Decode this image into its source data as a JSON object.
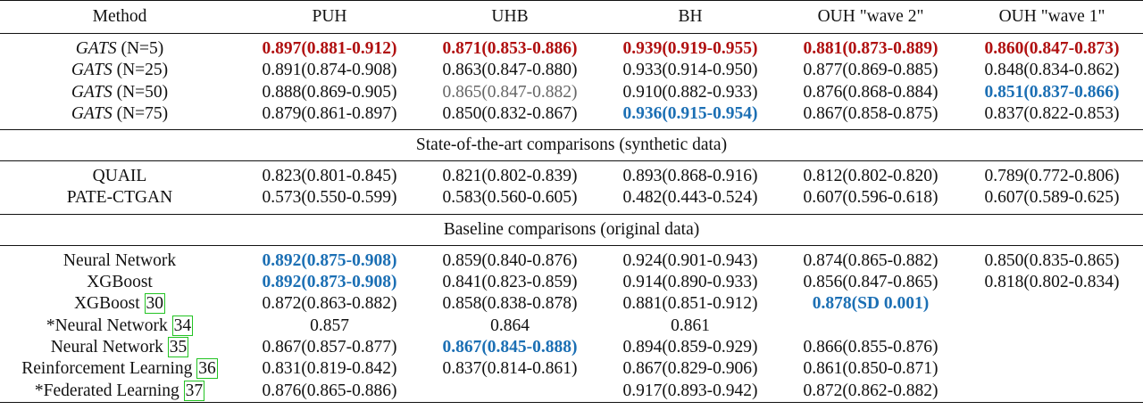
{
  "header": [
    "Method",
    "PUH",
    "UHB",
    "BH",
    "OUH \"wave 2\"",
    "OUH \"wave 1\""
  ],
  "gats_rows": [
    {
      "method": "GATS",
      "n": " (N=5)",
      "cells": [
        {
          "v": "0.897(0.881-0.912)",
          "s": "red"
        },
        {
          "v": "0.871(0.853-0.886)",
          "s": "red"
        },
        {
          "v": "0.939(0.919-0.955)",
          "s": "red"
        },
        {
          "v": "0.881(0.873-0.889)",
          "s": "red"
        },
        {
          "v": "0.860(0.847-0.873)",
          "s": "red"
        }
      ]
    },
    {
      "method": "GATS",
      "n": " (N=25)",
      "cells": [
        {
          "v": "0.891(0.874-0.908)",
          "s": ""
        },
        {
          "v": "0.863(0.847-0.880)",
          "s": ""
        },
        {
          "v": "0.933(0.914-0.950)",
          "s": ""
        },
        {
          "v": "0.877(0.869-0.885)",
          "s": ""
        },
        {
          "v": "0.848(0.834-0.862)",
          "s": ""
        }
      ]
    },
    {
      "method": "GATS",
      "n": " (N=50)",
      "cells": [
        {
          "v": "0.888(0.869-0.905)",
          "s": ""
        },
        {
          "v": "0.865(0.847-0.882)",
          "s": "grey"
        },
        {
          "v": "0.910(0.882-0.933)",
          "s": ""
        },
        {
          "v": "0.876(0.868-0.884)",
          "s": ""
        },
        {
          "v": "0.851(0.837-0.866)",
          "s": "blue"
        }
      ]
    },
    {
      "method": "GATS",
      "n": " (N=75)",
      "cells": [
        {
          "v": "0.879(0.861-0.897)",
          "s": ""
        },
        {
          "v": "0.850(0.832-0.867)",
          "s": ""
        },
        {
          "v": "0.936(0.915-0.954)",
          "s": "blue"
        },
        {
          "v": "0.867(0.858-0.875)",
          "s": ""
        },
        {
          "v": "0.837(0.822-0.853)",
          "s": ""
        }
      ]
    }
  ],
  "section1_title": "State-of-the-art comparisons (synthetic data)",
  "sota_rows": [
    {
      "method": "QUAIL",
      "cells": [
        {
          "v": "0.823(0.801-0.845)",
          "s": ""
        },
        {
          "v": "0.821(0.802-0.839)",
          "s": ""
        },
        {
          "v": "0.893(0.868-0.916)",
          "s": ""
        },
        {
          "v": "0.812(0.802-0.820)",
          "s": ""
        },
        {
          "v": "0.789(0.772-0.806)",
          "s": ""
        }
      ]
    },
    {
      "method": "PATE-CTGAN",
      "cells": [
        {
          "v": "0.573(0.550-0.599)",
          "s": ""
        },
        {
          "v": "0.583(0.560-0.605)",
          "s": ""
        },
        {
          "v": "0.482(0.443-0.524)",
          "s": ""
        },
        {
          "v": "0.607(0.596-0.618)",
          "s": ""
        },
        {
          "v": "0.607(0.589-0.625)",
          "s": ""
        }
      ]
    }
  ],
  "section2_title": "Baseline comparisons (original data)",
  "baseline_rows": [
    {
      "method": "Neural Network",
      "ref": "",
      "cells": [
        {
          "v": "0.892(0.875-0.908)",
          "s": "blue"
        },
        {
          "v": "0.859(0.840-0.876)",
          "s": ""
        },
        {
          "v": "0.924(0.901-0.943)",
          "s": ""
        },
        {
          "v": "0.874(0.865-0.882)",
          "s": ""
        },
        {
          "v": "0.850(0.835-0.865)",
          "s": ""
        }
      ]
    },
    {
      "method": "XGBoost",
      "ref": "",
      "cells": [
        {
          "v": "0.892(0.873-0.908)",
          "s": "blue"
        },
        {
          "v": "0.841(0.823-0.859)",
          "s": ""
        },
        {
          "v": "0.914(0.890-0.933)",
          "s": ""
        },
        {
          "v": "0.856(0.847-0.865)",
          "s": ""
        },
        {
          "v": "0.818(0.802-0.834)",
          "s": ""
        }
      ]
    },
    {
      "method": "XGBoost ",
      "ref": "30",
      "cells": [
        {
          "v": "0.872(0.863-0.882)",
          "s": ""
        },
        {
          "v": "0.858(0.838-0.878)",
          "s": ""
        },
        {
          "v": "0.881(0.851-0.912)",
          "s": ""
        },
        {
          "v": "0.878(SD 0.001)",
          "s": "blue"
        },
        {
          "v": "",
          "s": ""
        }
      ]
    },
    {
      "method": "*Neural Network ",
      "ref": "34",
      "cells": [
        {
          "v": "0.857",
          "s": ""
        },
        {
          "v": "0.864",
          "s": ""
        },
        {
          "v": "0.861",
          "s": ""
        },
        {
          "v": "",
          "s": ""
        },
        {
          "v": "",
          "s": ""
        }
      ]
    },
    {
      "method": "Neural Network ",
      "ref": "35",
      "cells": [
        {
          "v": "0.867(0.857-0.877)",
          "s": ""
        },
        {
          "v": "0.867(0.845-0.888)",
          "s": "blue"
        },
        {
          "v": "0.894(0.859-0.929)",
          "s": ""
        },
        {
          "v": "0.866(0.855-0.876)",
          "s": ""
        },
        {
          "v": "",
          "s": ""
        }
      ]
    },
    {
      "method": "Reinforcement Learning ",
      "ref": "36",
      "cells": [
        {
          "v": "0.831(0.819-0.842)",
          "s": ""
        },
        {
          "v": "0.837(0.814-0.861)",
          "s": ""
        },
        {
          "v": "0.867(0.829-0.906)",
          "s": ""
        },
        {
          "v": "0.861(0.850-0.871)",
          "s": ""
        },
        {
          "v": "",
          "s": ""
        }
      ]
    },
    {
      "method": "*Federated Learning ",
      "ref": "37",
      "cells": [
        {
          "v": "0.876(0.865-0.886)",
          "s": ""
        },
        {
          "v": "",
          "s": ""
        },
        {
          "v": "0.917(0.893-0.942)",
          "s": ""
        },
        {
          "v": "0.872(0.862-0.882)",
          "s": ""
        },
        {
          "v": "",
          "s": ""
        }
      ]
    }
  ]
}
